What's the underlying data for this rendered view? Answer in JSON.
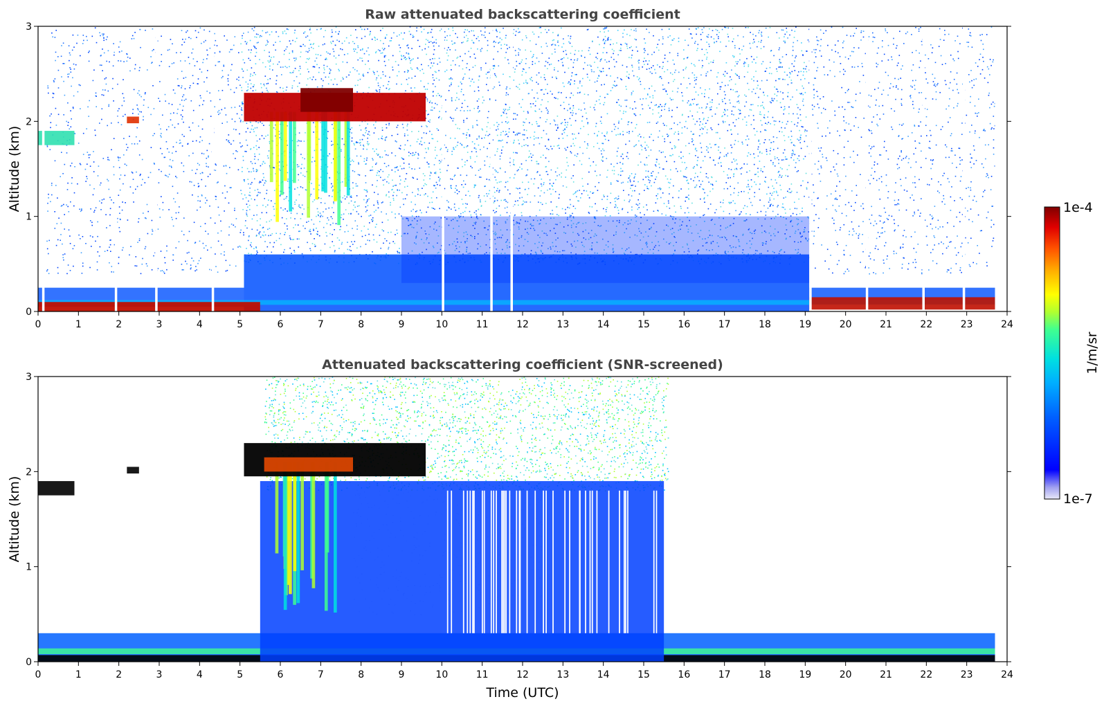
{
  "chart_data": [
    {
      "type": "heatmap",
      "title": "Raw attenuated backscattering coefficient",
      "ylabel": "Altitude (km)",
      "xlabel": "",
      "xlim": [
        0,
        24
      ],
      "ylim": [
        0,
        3
      ],
      "xticks": [
        "0",
        "1",
        "2",
        "3",
        "4",
        "5",
        "6",
        "7",
        "8",
        "9",
        "10",
        "11",
        "12",
        "13",
        "14",
        "15",
        "16",
        "17",
        "18",
        "19",
        "20",
        "21",
        "22",
        "23",
        "24"
      ],
      "yticks": [
        "0",
        "1",
        "2",
        "3"
      ],
      "features": [
        {
          "name": "surface layer",
          "x": [
            0,
            5.5
          ],
          "y": [
            0,
            0.1
          ]
        },
        {
          "name": "surface layer",
          "x": [
            19.1,
            23.7
          ],
          "y": [
            0,
            0.15
          ]
        },
        {
          "name": "cloud",
          "x": [
            5.1,
            9.6
          ],
          "y": [
            2.0,
            2.3
          ]
        },
        {
          "name": "precipitation",
          "x": [
            5.7,
            7.8
          ],
          "y": [
            0.8,
            2.1
          ]
        },
        {
          "name": "boundary layer",
          "x": [
            5.1,
            19.1
          ],
          "y": [
            0,
            0.6
          ]
        },
        {
          "name": "elevated layer",
          "x": [
            0,
            0.9
          ],
          "y": [
            1.75,
            1.9
          ]
        },
        {
          "name": "elevated layer",
          "x": [
            2.2,
            2.5
          ],
          "y": [
            1.98,
            2.05
          ]
        }
      ]
    },
    {
      "type": "heatmap",
      "title": "Attenuated backscattering coefficient (SNR-screened)",
      "ylabel": "Altitude (km)",
      "xlabel": "Time (UTC)",
      "xlim": [
        0,
        24
      ],
      "ylim": [
        0,
        3
      ],
      "xticks": [
        "0",
        "1",
        "2",
        "3",
        "4",
        "5",
        "6",
        "7",
        "8",
        "9",
        "10",
        "11",
        "12",
        "13",
        "14",
        "15",
        "16",
        "17",
        "18",
        "19",
        "20",
        "21",
        "22",
        "23",
        "24"
      ],
      "yticks": [
        "0",
        "1",
        "2",
        "3"
      ],
      "features": [
        {
          "name": "surface layer",
          "x": [
            0,
            23.7
          ],
          "y": [
            0,
            0.3
          ]
        },
        {
          "name": "cloud",
          "x": [
            5.1,
            9.6
          ],
          "y": [
            1.95,
            2.35
          ]
        },
        {
          "name": "precipitation",
          "x": [
            5.6,
            7.8
          ],
          "y": [
            0.5,
            2.1
          ]
        },
        {
          "name": "boundary layer",
          "x": [
            5.5,
            15.5
          ],
          "y": [
            0,
            1.9
          ]
        }
      ]
    }
  ],
  "colorbar": {
    "label": "1/m/sr",
    "max_label": "1e-4",
    "min_label": "1e-7",
    "scale": "log",
    "colors": [
      "#e8e8f8",
      "#a0a0f0",
      "#0000ff",
      "#0060ff",
      "#00b0ff",
      "#00e0e0",
      "#40ff90",
      "#b0ff30",
      "#ffff00",
      "#ffb000",
      "#ff5000",
      "#e00000",
      "#800000"
    ]
  },
  "colors": {
    "background": "#ffffff",
    "title": "#444444",
    "saturated": "#000000"
  }
}
